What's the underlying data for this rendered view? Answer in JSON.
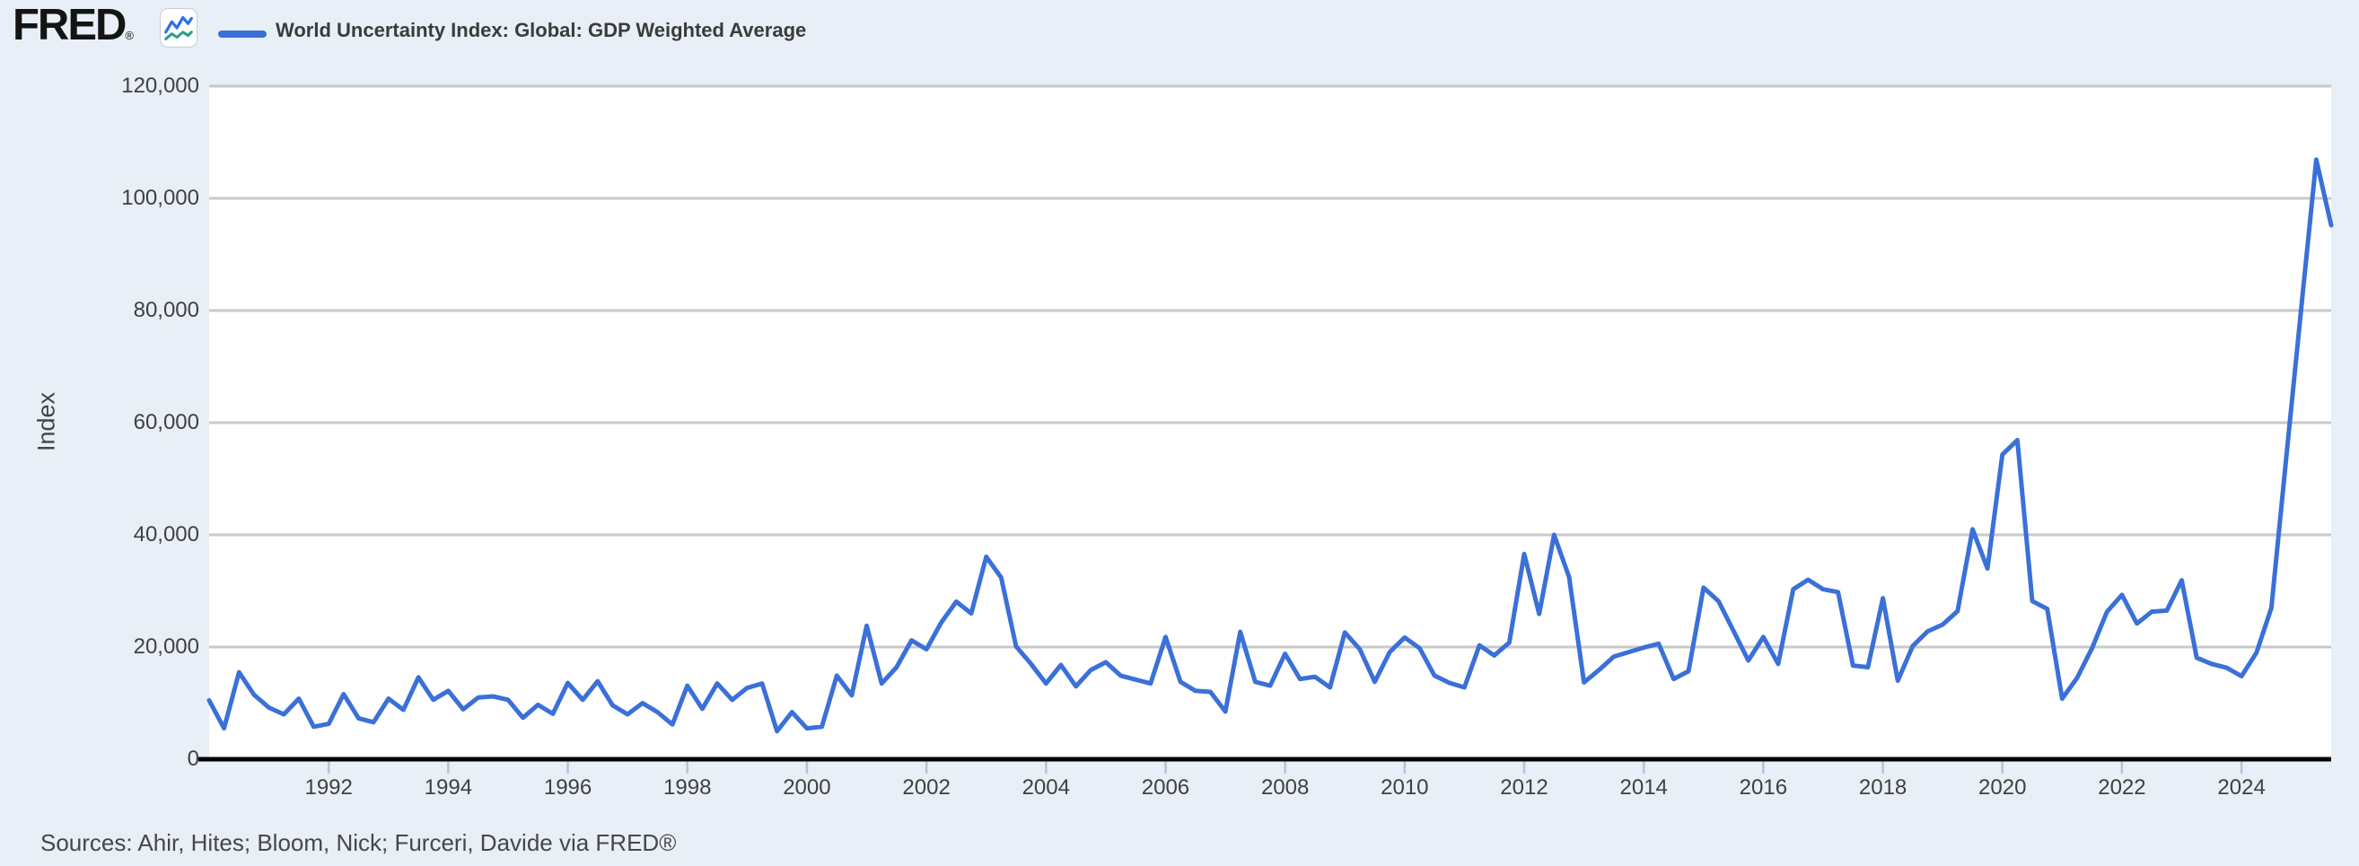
{
  "header": {
    "brand": "FRED",
    "registered_mark": "®",
    "legend": {
      "label": "World Uncertainty Index: Global: GDP Weighted Average",
      "swatch_color": "#3a70d8"
    }
  },
  "chart_data": {
    "type": "line",
    "title": "World Uncertainty Index: Global: GDP Weighted Average",
    "ylabel": "Index",
    "frequency": "quarterly",
    "x_start": "1990 Q1",
    "x_end": "2025 Q3",
    "xlim_years": [
      1990,
      2025.6
    ],
    "ylim": [
      0,
      120000
    ],
    "grid": true,
    "legend_position": "top-left",
    "x_tick_years": [
      1992,
      1994,
      1996,
      1998,
      2000,
      2002,
      2004,
      2006,
      2008,
      2010,
      2012,
      2014,
      2016,
      2018,
      2020,
      2022,
      2024
    ],
    "y_ticks": [
      0,
      20000,
      40000,
      60000,
      80000,
      100000,
      120000
    ],
    "series": [
      {
        "name": "World Uncertainty Index: Global: GDP Weighted Average",
        "color": "#3a70d8",
        "values": [
          10500,
          5500,
          15500,
          11500,
          9200,
          8000,
          10800,
          5800,
          6300,
          11600,
          7300,
          6600,
          10800,
          8800,
          14600,
          10600,
          12200,
          8900,
          11000,
          11200,
          10600,
          7400,
          9700,
          8100,
          13600,
          10600,
          13900,
          9600,
          8000,
          10000,
          8400,
          6200,
          13100,
          9000,
          13500,
          10600,
          12700,
          13500,
          5000,
          8400,
          5500,
          5800,
          14900,
          11400,
          23800,
          13500,
          16400,
          21200,
          19600,
          24400,
          28100,
          26000,
          36100,
          32400,
          20100,
          17000,
          13500,
          16800,
          13000,
          15900,
          17300,
          14900,
          14200,
          13500,
          21800,
          13800,
          12200,
          12000,
          8500,
          22700,
          13800,
          13100,
          18800,
          14300,
          14700,
          12800,
          22600,
          19600,
          13800,
          19100,
          21700,
          19800,
          14900,
          13600,
          12800,
          20300,
          18500,
          20800,
          36600,
          25900,
          40000,
          32500,
          13700,
          15900,
          18300,
          19100,
          19900,
          20600,
          14300,
          15700,
          30600,
          28200,
          22900,
          17600,
          21800,
          17000,
          30300,
          32000,
          30300,
          29800,
          16700,
          16400,
          28700,
          14000,
          20200,
          22800,
          24000,
          26400,
          41000,
          34000,
          54300,
          56900,
          28200,
          26800,
          10800,
          14500,
          19800,
          26300,
          29300,
          24200,
          26300,
          26500,
          31900,
          18100,
          17000,
          16300,
          14800,
          19000,
          27000,
          54000,
          80500,
          106900,
          95200
        ]
      }
    ]
  },
  "footer": {
    "sources": "Sources: Ahir, Hites; Bloom, Nick; Furceri, Davide via FRED®"
  },
  "colors": {
    "page_background": "#e9eff7",
    "plot_background": "#ffffff",
    "gridline": "#c9c9c9",
    "axis_line": "#000000",
    "tick_mark": "#b6c2da",
    "line": "#3a70d8",
    "text": "#404040"
  }
}
